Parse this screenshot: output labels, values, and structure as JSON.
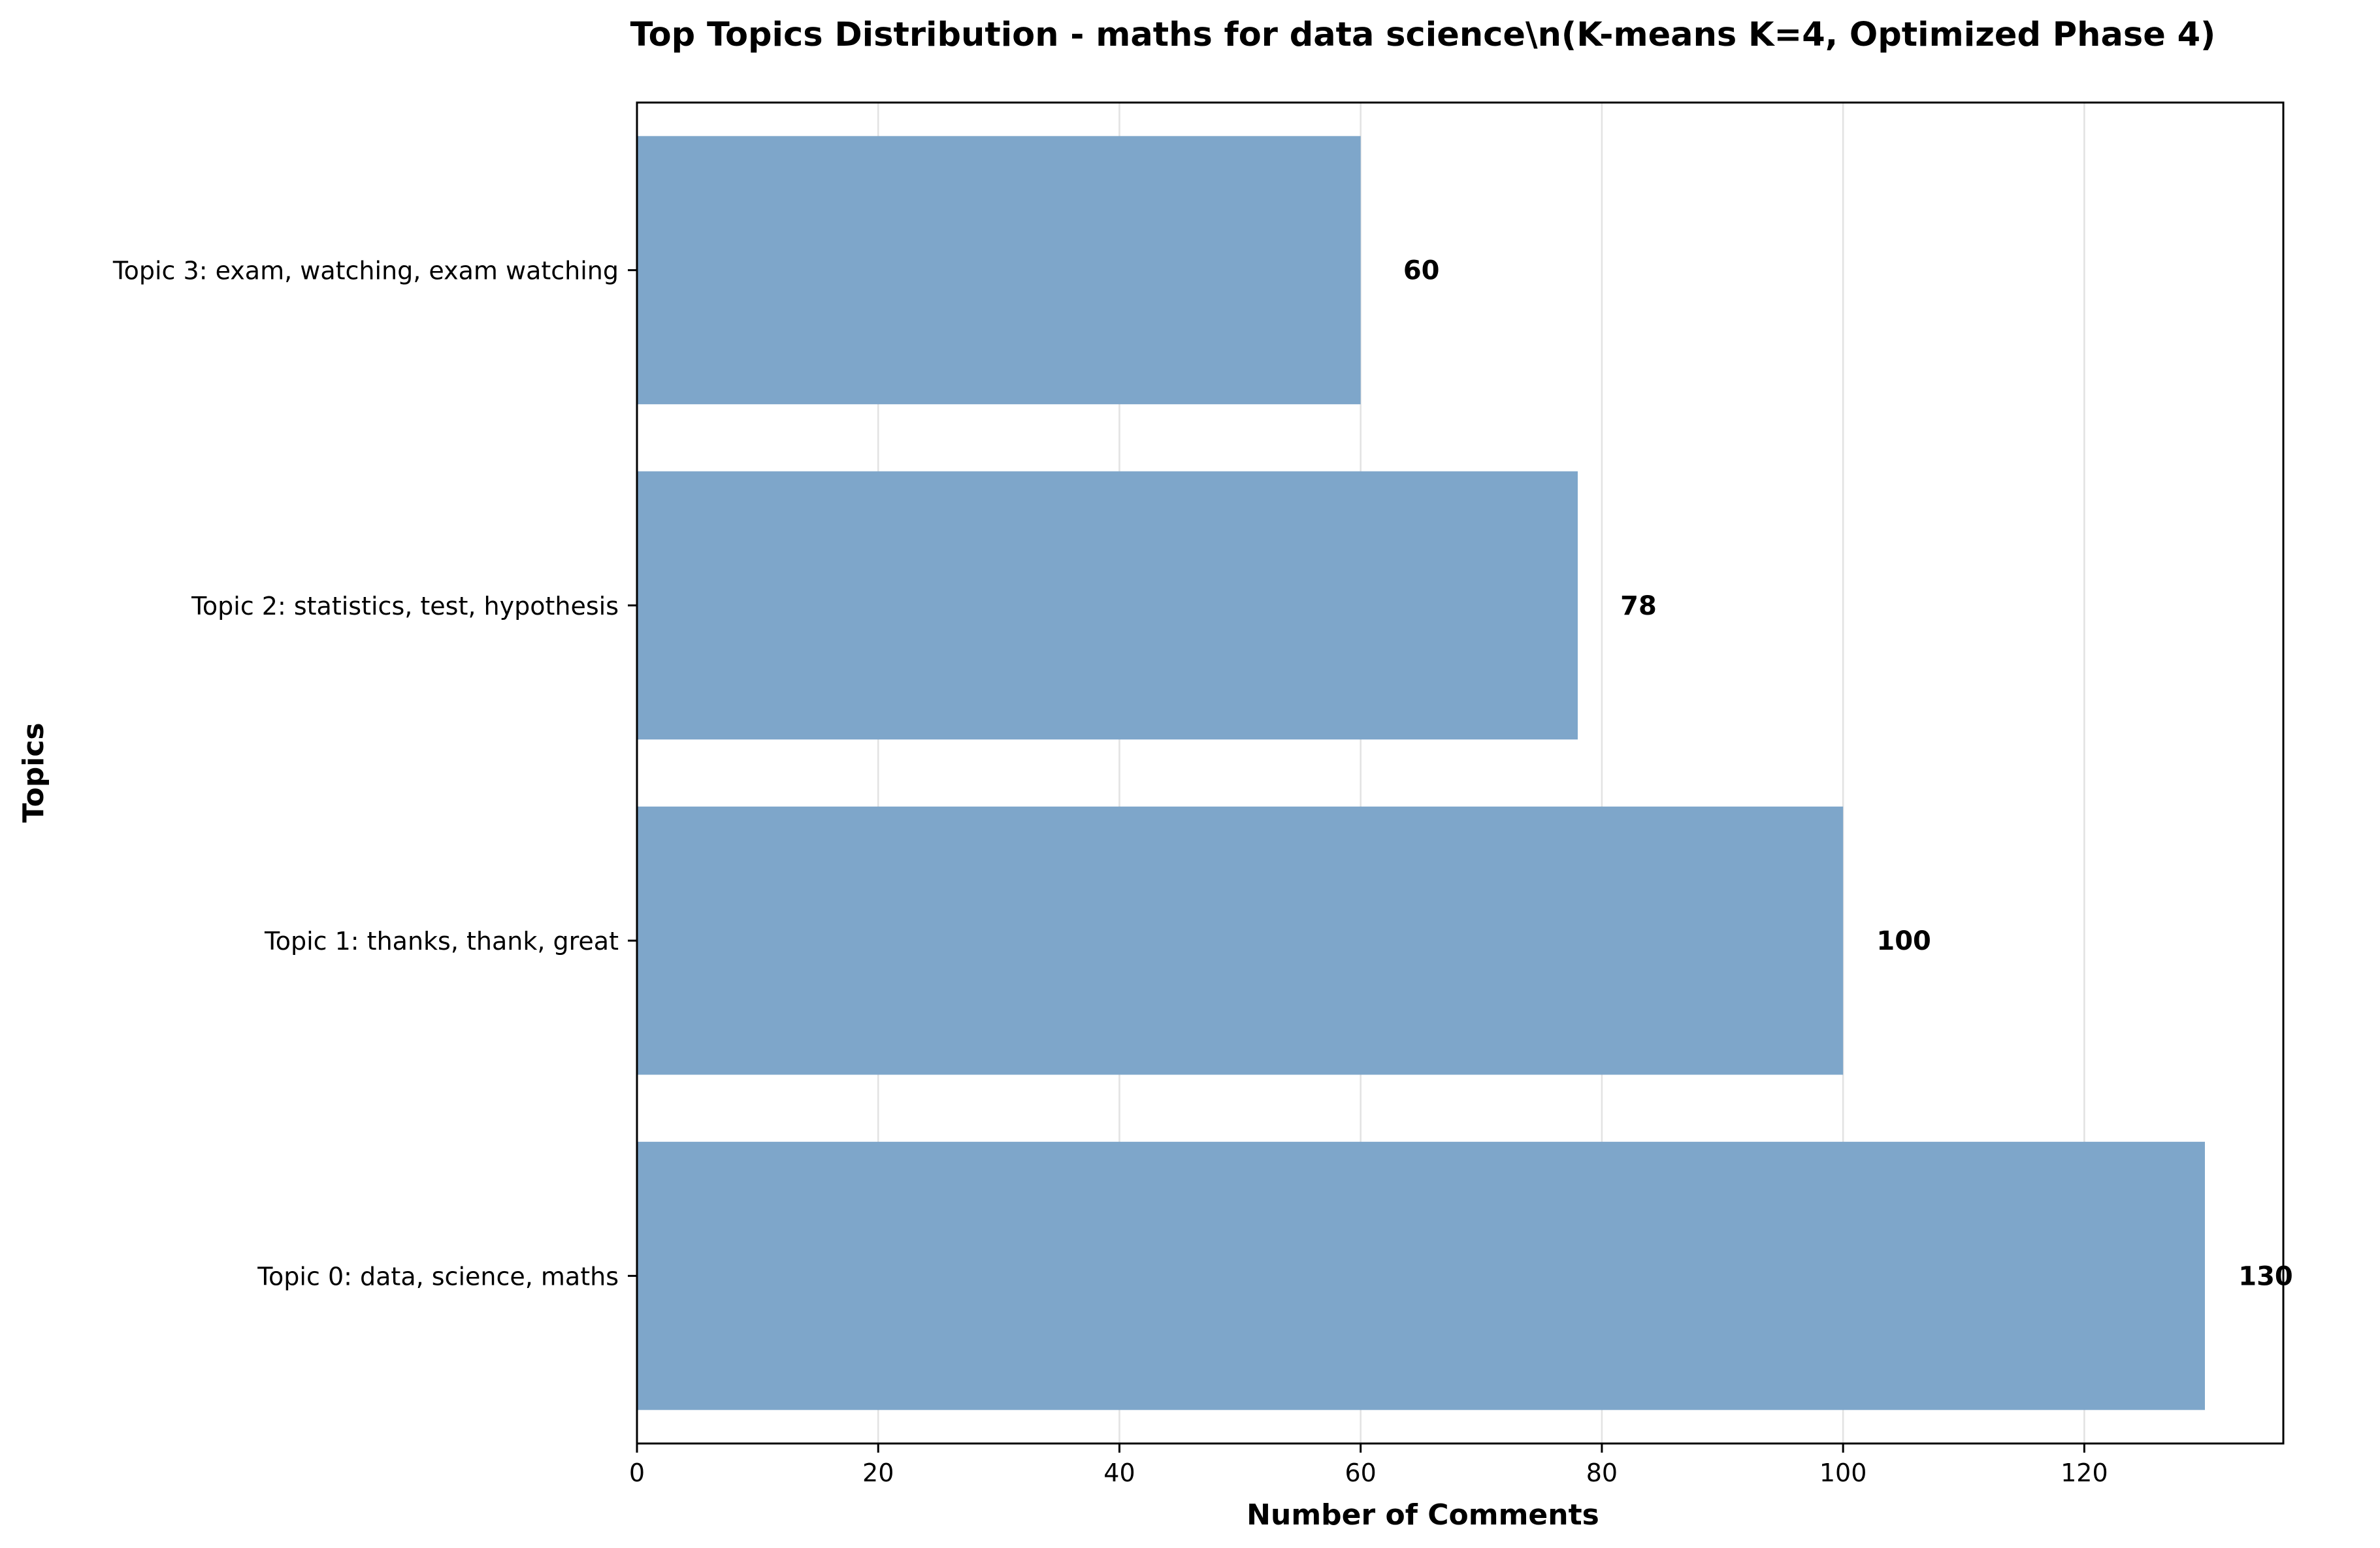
{
  "chart_data": {
    "type": "bar",
    "orientation": "horizontal",
    "title": "Top Topics Distribution - maths for data science\\n(K-means K=4, Optimized Phase 4)",
    "xlabel": "Number of Comments",
    "ylabel": "Topics",
    "categories": [
      "Topic 0: data, science, maths",
      "Topic 1: thanks, thank, great",
      "Topic 2: statistics, test, hypothesis",
      "Topic 3: exam, watching, exam watching"
    ],
    "values": [
      130,
      100,
      78,
      60
    ],
    "data_labels": [
      "130",
      "100",
      "78",
      "60"
    ],
    "xlim": [
      0,
      136.5
    ],
    "xticks": [
      0,
      20,
      40,
      60,
      80,
      100,
      120
    ],
    "xtick_labels": [
      "0",
      "20",
      "40",
      "60",
      "80",
      "100",
      "120"
    ],
    "grid": "x-axis only, light",
    "legend": "none",
    "bar_color": "#7ea6ca"
  }
}
